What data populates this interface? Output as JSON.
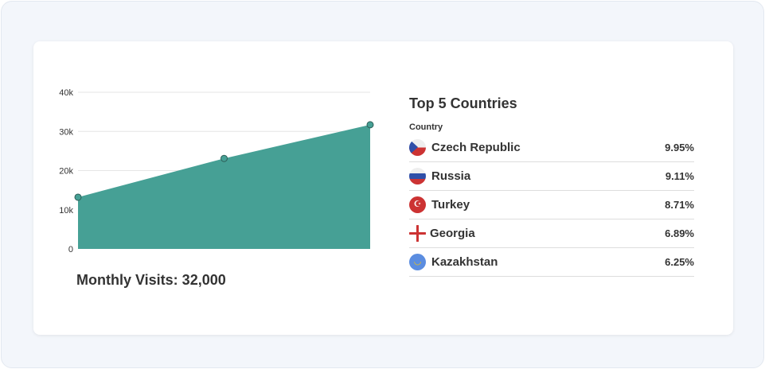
{
  "chart": {
    "label": "Monthly Visits: 32,000"
  },
  "chart_data": {
    "type": "area",
    "x": [
      1,
      2,
      3
    ],
    "values": [
      13200,
      23100,
      31700
    ],
    "yticks": [
      "0",
      "10k",
      "20k",
      "30k",
      "40k"
    ],
    "ylim": [
      0,
      40000
    ],
    "grid": true,
    "color": "#46a095"
  },
  "countries": {
    "title": "Top 5 Countries",
    "column_header": "Country",
    "rows": [
      {
        "name": "Czech Republic",
        "pct": "9.95%",
        "flag": "czech-flag-icon"
      },
      {
        "name": "Russia",
        "pct": "9.11%",
        "flag": "russia-flag-icon"
      },
      {
        "name": "Turkey",
        "pct": "8.71%",
        "flag": "turkey-flag-icon"
      },
      {
        "name": "Georgia",
        "pct": "6.89%",
        "flag": "georgia-flag-icon"
      },
      {
        "name": "Kazakhstan",
        "pct": "6.25%",
        "flag": "kazakhstan-flag-icon"
      }
    ]
  }
}
